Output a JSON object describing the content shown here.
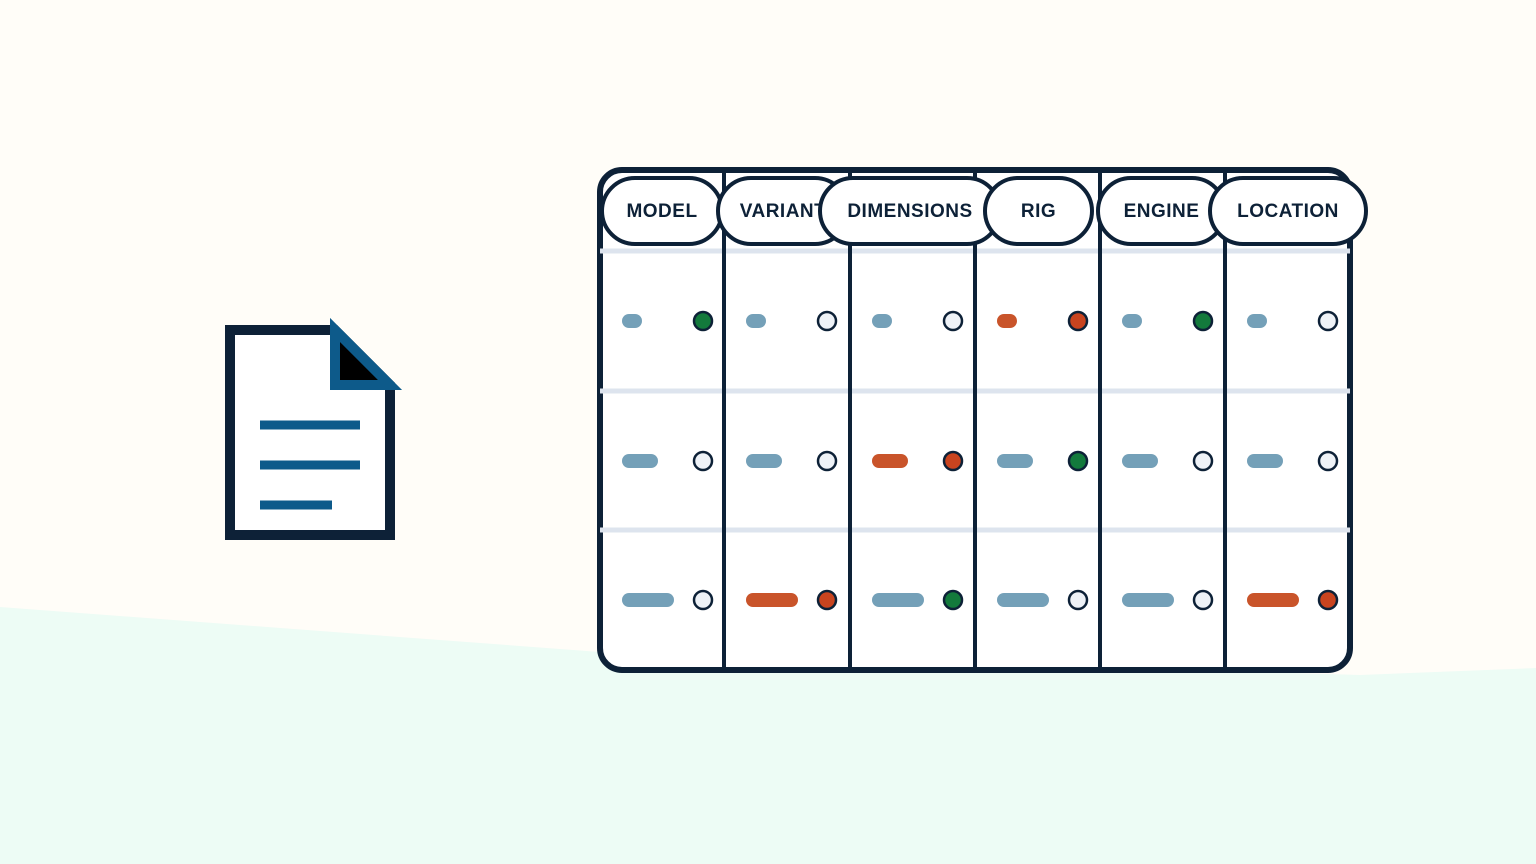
{
  "table": {
    "headers": [
      "MODEL",
      "VARIANT",
      "DIMENSIONS",
      "RIG",
      "ENGINE",
      "LOCATION"
    ],
    "cells": [
      [
        {
          "bar": "#74a0b8",
          "dot": "#137a3c"
        },
        {
          "bar": "#74a0b8",
          "dot": "#eef2f7"
        },
        {
          "bar": "#74a0b8",
          "dot": "#eef2f7"
        },
        {
          "bar": "#c9542a",
          "dot": "#c9441f"
        },
        {
          "bar": "#74a0b8",
          "dot": "#137a3c"
        },
        {
          "bar": "#74a0b8",
          "dot": "#eef2f7"
        }
      ],
      [
        {
          "bar": "#74a0b8",
          "dot": "#eef2f7"
        },
        {
          "bar": "#74a0b8",
          "dot": "#eef2f7"
        },
        {
          "bar": "#c9542a",
          "dot": "#c9441f"
        },
        {
          "bar": "#74a0b8",
          "dot": "#137a3c"
        },
        {
          "bar": "#74a0b8",
          "dot": "#eef2f7"
        },
        {
          "bar": "#74a0b8",
          "dot": "#eef2f7"
        }
      ],
      [
        {
          "bar": "#74a0b8",
          "dot": "#eef2f7"
        },
        {
          "bar": "#c9542a",
          "dot": "#c9441f"
        },
        {
          "bar": "#74a0b8",
          "dot": "#137a3c"
        },
        {
          "bar": "#74a0b8",
          "dot": "#eef2f7"
        },
        {
          "bar": "#74a0b8",
          "dot": "#eef2f7"
        },
        {
          "bar": "#c9542a",
          "dot": "#c9441f"
        }
      ]
    ]
  }
}
